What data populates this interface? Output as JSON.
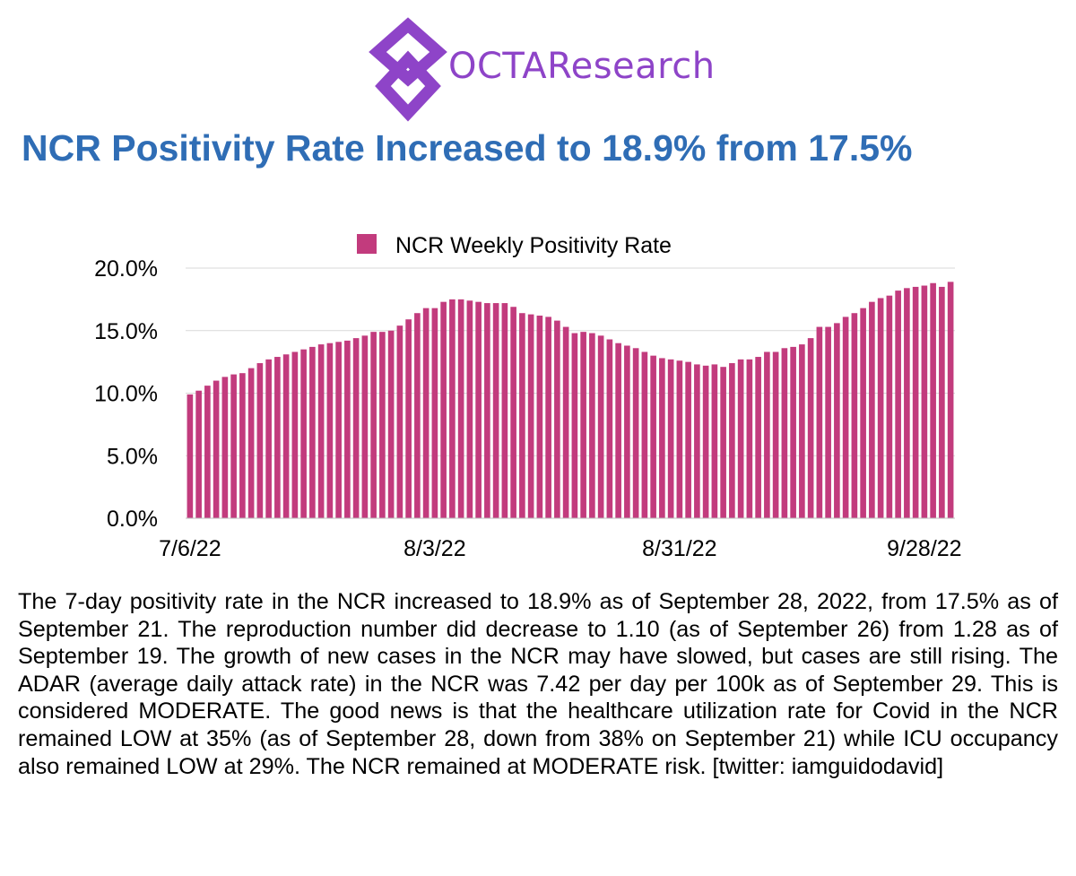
{
  "brand": {
    "name": "OCTAResearch",
    "logo_color": "#8e44c8"
  },
  "title": "NCR Positivity Rate Increased to 18.9% from 17.5%",
  "title_color": "#2f6db5",
  "chart_data": {
    "type": "bar",
    "title": "",
    "xlabel": "",
    "ylabel": "",
    "legend": [
      "NCR Weekly Positivity Rate"
    ],
    "legend_position": "top-center",
    "grid": true,
    "bar_color": "#c23b7d",
    "ylim": [
      0,
      20
    ],
    "yticks": [
      "0.0%",
      "5.0%",
      "10.0%",
      "15.0%",
      "20.0%"
    ],
    "xticks": [
      "7/6/22",
      "8/3/22",
      "8/31/22",
      "9/28/22"
    ],
    "x_start": "7/6/22",
    "x_end": "9/28/22",
    "series": [
      {
        "name": "NCR Weekly Positivity Rate",
        "values": [
          9.9,
          10.2,
          10.6,
          11.0,
          11.3,
          11.5,
          11.6,
          12.0,
          12.4,
          12.7,
          12.9,
          13.1,
          13.3,
          13.5,
          13.7,
          13.9,
          14.0,
          14.1,
          14.2,
          14.4,
          14.6,
          14.9,
          14.9,
          15.0,
          15.4,
          15.9,
          16.4,
          16.8,
          16.8,
          17.3,
          17.5,
          17.5,
          17.4,
          17.3,
          17.2,
          17.2,
          17.2,
          16.9,
          16.4,
          16.3,
          16.2,
          16.1,
          15.8,
          15.3,
          14.8,
          14.9,
          14.8,
          14.6,
          14.3,
          14.0,
          13.8,
          13.6,
          13.3,
          13.0,
          12.8,
          12.7,
          12.6,
          12.5,
          12.3,
          12.2,
          12.3,
          12.1,
          12.4,
          12.7,
          12.7,
          12.9,
          13.3,
          13.3,
          13.6,
          13.7,
          13.9,
          14.4,
          15.3,
          15.3,
          15.6,
          16.1,
          16.4,
          16.8,
          17.3,
          17.6,
          17.8,
          18.2,
          18.4,
          18.5,
          18.6,
          18.8,
          18.5,
          18.9
        ]
      }
    ]
  },
  "body_text": "The 7-day positivity rate in the NCR increased to 18.9% as of September 28, 2022, from 17.5% as of September 21. The reproduction number did decrease to 1.10 (as of September 26) from 1.28 as of September 19. The growth of new cases in the NCR may have slowed, but cases are still rising. The ADAR (average daily attack rate) in the NCR was 7.42 per day per 100k as of September 29. This is considered MODERATE. The good news is that the healthcare utilization rate for Covid in the NCR remained LOW at 35% (as of September 28, down from 38% on September 21) while ICU occupancy also remained LOW at 29%. The NCR remained at MODERATE risk. [twitter: iamguidodavid]"
}
